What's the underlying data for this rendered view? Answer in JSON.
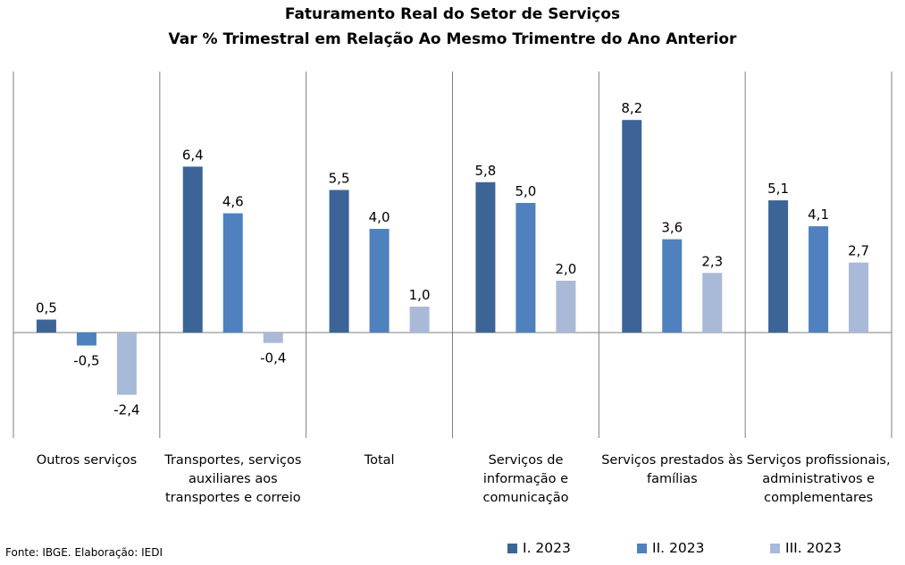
{
  "chart_data": {
    "type": "bar",
    "title": "Faturamento Real do Setor de Serviços",
    "subtitle": "Var % Trimestral em Relação Ao Mesmo Trimentre do Ano Anterior",
    "categories": [
      "Outros serviços",
      "Transportes, serviços auxiliares aos transportes e correio",
      "Total",
      "Serviços de informação e comunicação",
      "Serviços prestados às famílias",
      "Serviços profissionais, administrativos e complementares"
    ],
    "series": [
      {
        "name": "I. 2023",
        "color": "#3D6496",
        "values": [
          0.5,
          6.4,
          5.5,
          5.8,
          8.2,
          5.1
        ],
        "labels": [
          "0,5",
          "6,4",
          "5,5",
          "5,8",
          "8,2",
          "5,1"
        ]
      },
      {
        "name": "II. 2023",
        "color": "#4E81BD",
        "values": [
          -0.5,
          4.6,
          4.0,
          5.0,
          3.6,
          4.1
        ],
        "labels": [
          "-0,5",
          "4,6",
          "4,0",
          "5,0",
          "3,6",
          "4,1"
        ]
      },
      {
        "name": "III. 2023",
        "color": "#A9B9D8",
        "values": [
          -2.4,
          -0.4,
          1.0,
          2.0,
          2.3,
          2.7
        ],
        "labels": [
          "-2,4",
          "-0,4",
          "1,0",
          "2,0",
          "2,3",
          "2,7"
        ]
      }
    ],
    "ylim": [
      -4.0,
      10.0
    ],
    "grid": false,
    "legend_position": "bottom-right"
  },
  "source": "Fonte: IBGE. Elaboração: IEDI"
}
